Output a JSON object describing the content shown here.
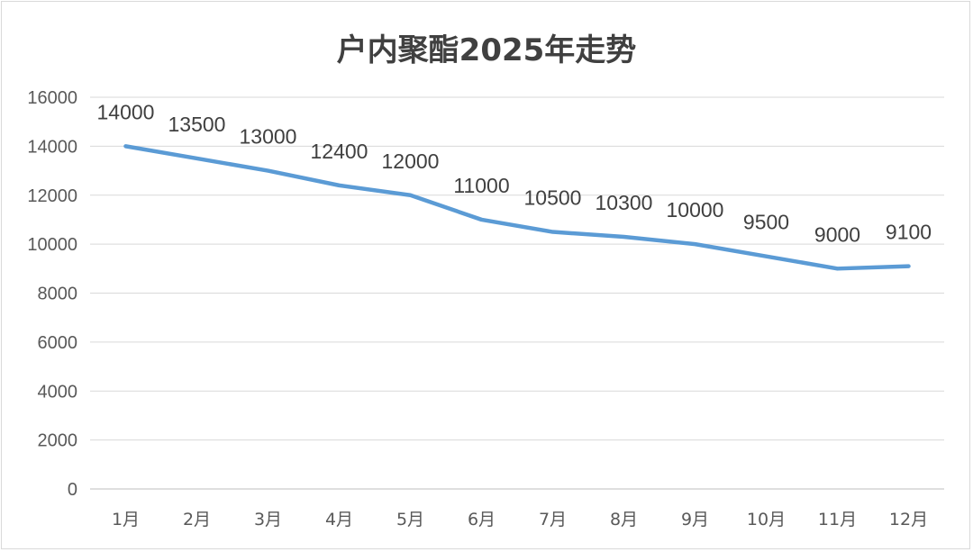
{
  "chart_data": {
    "type": "line",
    "title": "户内聚酯2025年走势",
    "xlabel": "",
    "ylabel": "",
    "categories": [
      "1月",
      "2月",
      "3月",
      "4月",
      "5月",
      "6月",
      "7月",
      "8月",
      "9月",
      "10月",
      "11月",
      "12月"
    ],
    "series": [
      {
        "values": [
          14000,
          13500,
          13000,
          12400,
          12000,
          11000,
          10500,
          10300,
          10000,
          9500,
          9000,
          9100
        ]
      }
    ],
    "ylim": [
      0,
      16000
    ],
    "yticks": [
      0,
      2000,
      4000,
      6000,
      8000,
      10000,
      12000,
      14000,
      16000
    ],
    "grid": true,
    "legend": "none",
    "line_color": "#5b9bd5",
    "data_labels": true
  }
}
